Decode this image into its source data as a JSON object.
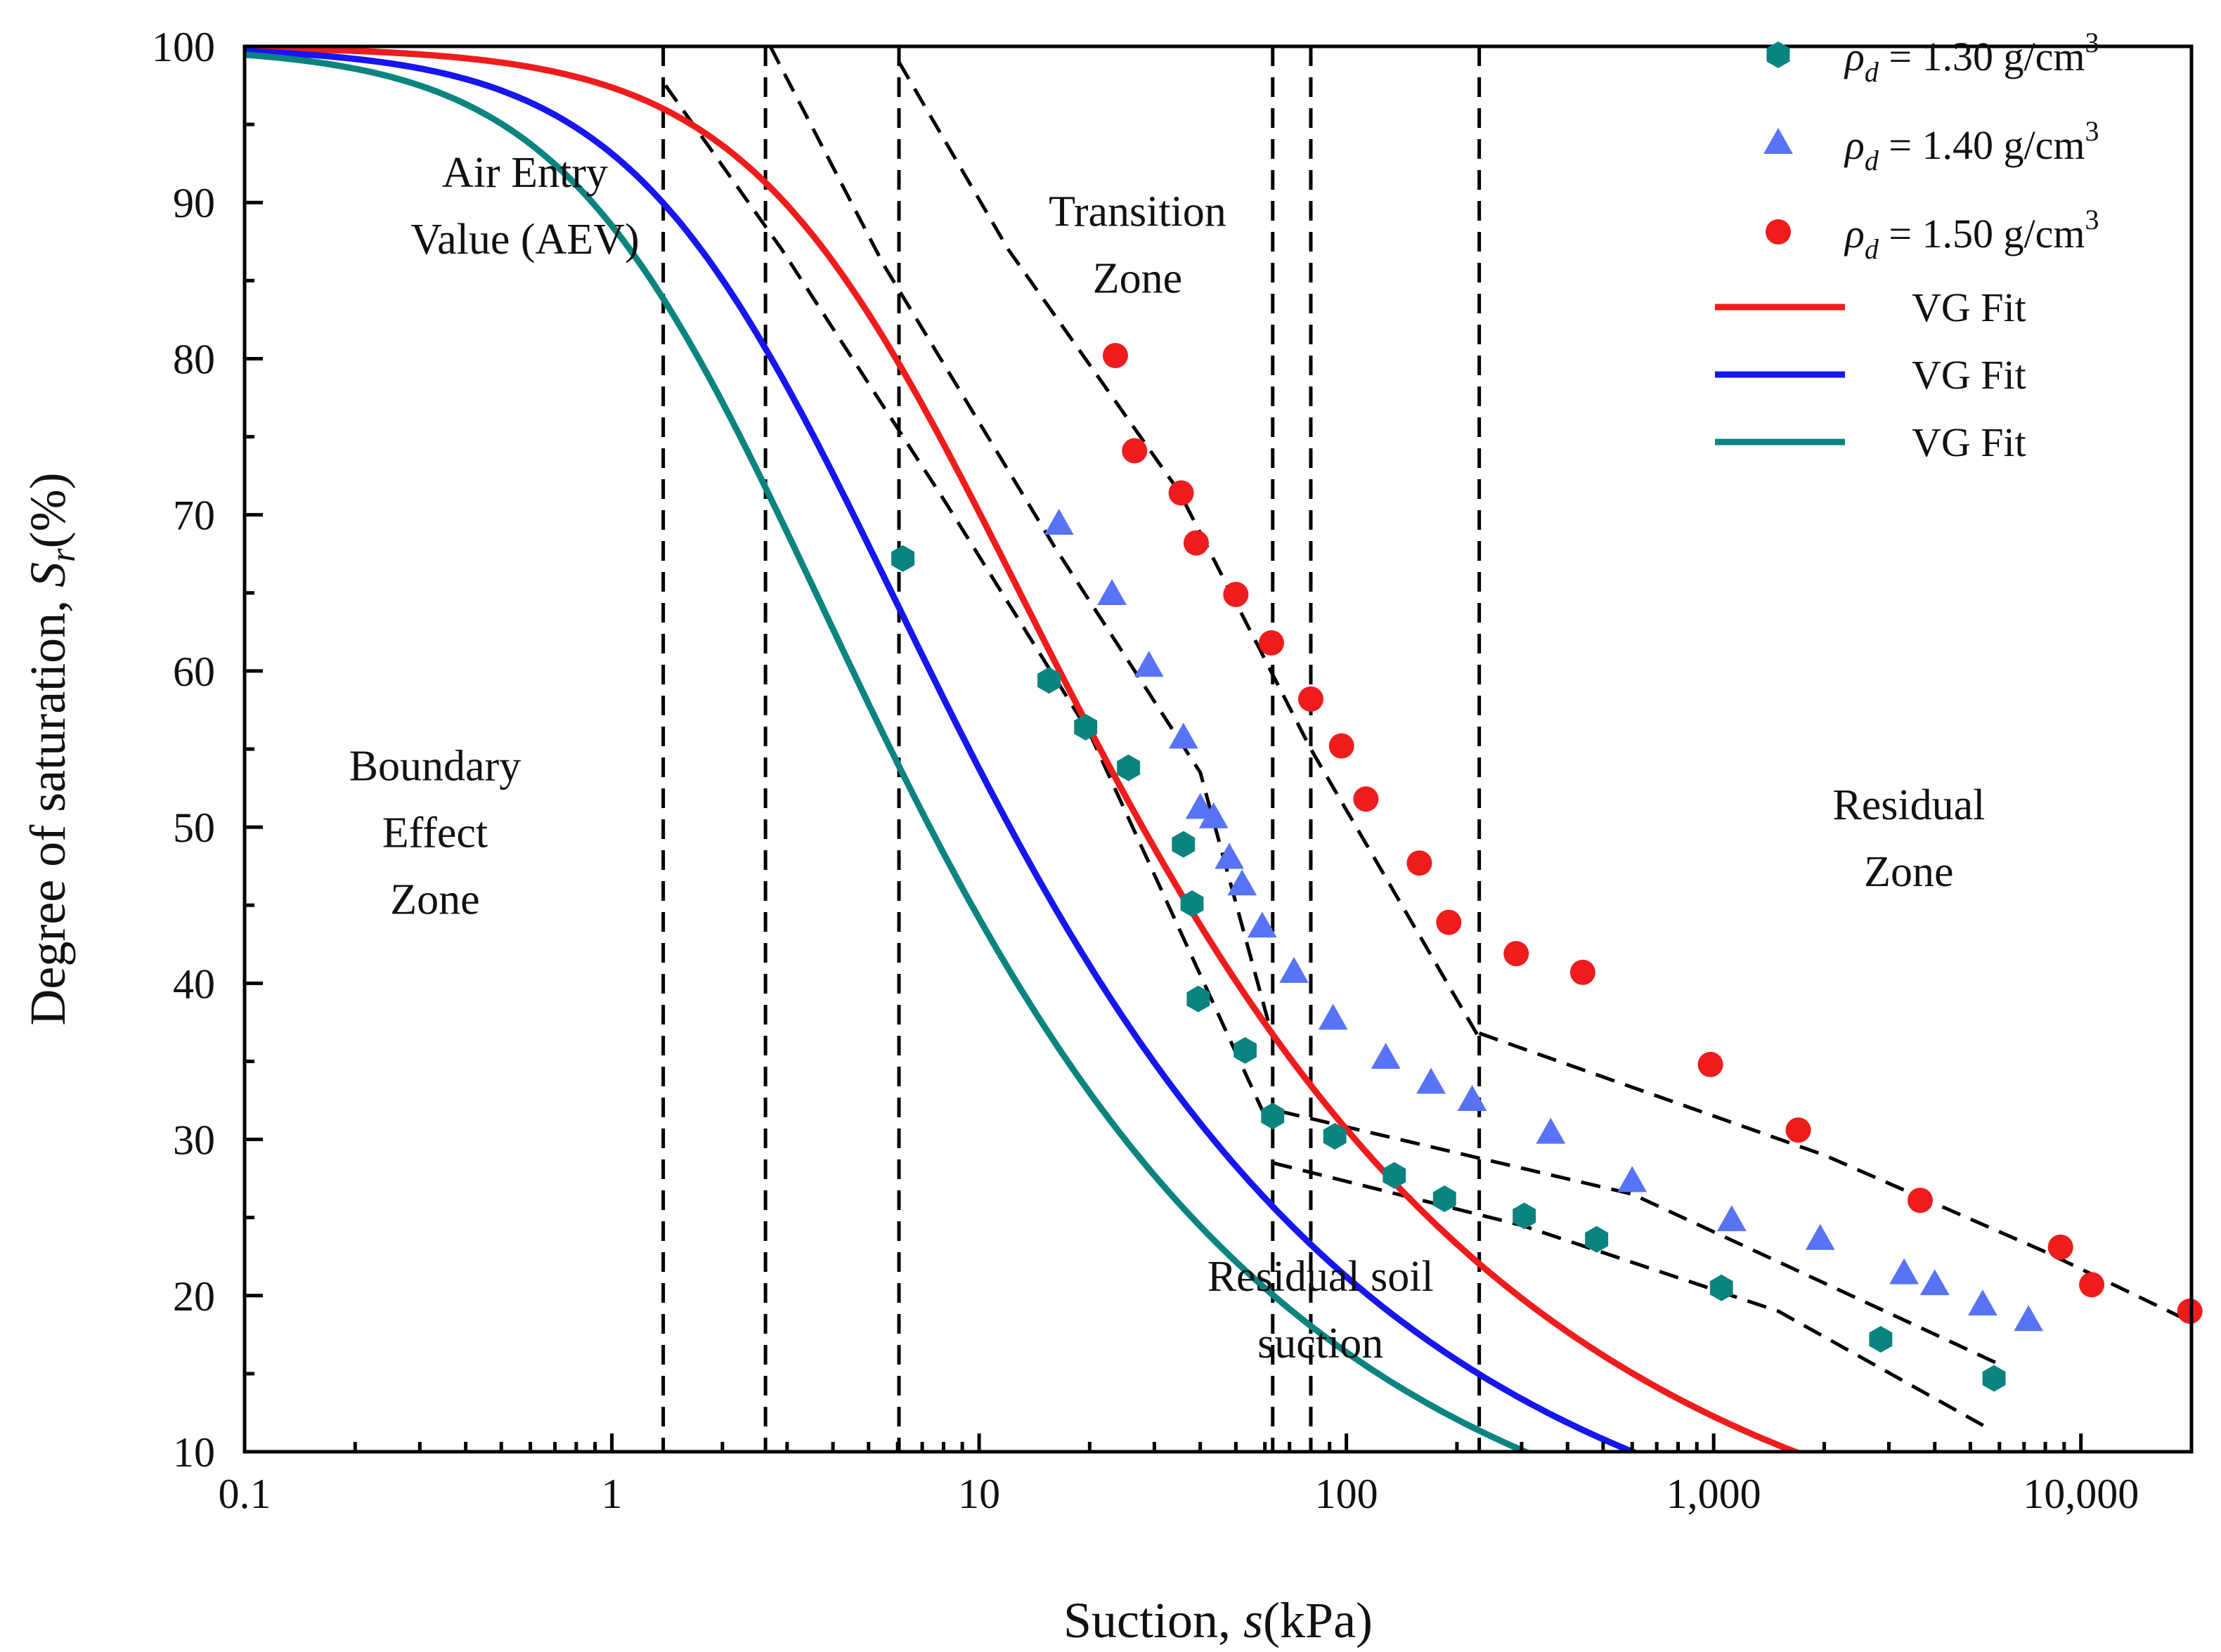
{
  "chart_data": {
    "type": "scatter",
    "title": "",
    "xlabel": {
      "prefix": "Suction, ",
      "symbol": "s",
      "suffix": "(kPa)"
    },
    "ylabel": {
      "prefix": "Degree of saturation, ",
      "symbol": "S",
      "sub": "r",
      "suffix": "(%)"
    },
    "xscale": "log",
    "xlim": [
      0.1,
      20000
    ],
    "ylim": [
      10,
      100
    ],
    "x_ticks": [
      {
        "value": 0.1,
        "label": "0.1"
      },
      {
        "value": 1,
        "label": "1"
      },
      {
        "value": 10,
        "label": "10"
      },
      {
        "value": 100,
        "label": "100"
      },
      {
        "value": 1000,
        "label": "1,000"
      },
      {
        "value": 10000,
        "label": "10,000"
      }
    ],
    "y_ticks": [
      10,
      20,
      30,
      40,
      50,
      60,
      70,
      80,
      90,
      100
    ],
    "series": [
      {
        "name": "ρd = 1.30 g/cm3",
        "legend": {
          "symbol": "ρ",
          "sub": "d",
          "text": " = 1.30 g/cm",
          "sup": "3"
        },
        "marker": "hexagon",
        "color": "#0b8480",
        "x": [
          6.2,
          15.5,
          19.5,
          25.5,
          36,
          38,
          39.5,
          53,
          63,
          93,
          135,
          185,
          305,
          480,
          1050,
          2850,
          5800
        ],
        "y": [
          67.2,
          59.4,
          56.4,
          53.8,
          48.9,
          45.1,
          39.0,
          35.7,
          31.5,
          30.2,
          27.7,
          26.2,
          25.1,
          23.6,
          20.5,
          17.2,
          14.7
        ]
      },
      {
        "name": "ρd = 1.40 g/cm3",
        "legend": {
          "symbol": "ρ",
          "sub": "d",
          "text": " = 1.40 g/cm",
          "sup": "3"
        },
        "marker": "triangle",
        "color": "#5873f5",
        "x": [
          16.5,
          23,
          29,
          36,
          40,
          43.5,
          48,
          52,
          59,
          72,
          92,
          128,
          170,
          220,
          360,
          600,
          1120,
          1950,
          3300,
          4000,
          5400,
          7200
        ],
        "y": [
          69.4,
          64.9,
          60.3,
          55.7,
          51.2,
          50.6,
          48.0,
          46.3,
          43.6,
          40.7,
          37.7,
          35.2,
          33.6,
          32.5,
          30.4,
          27.3,
          24.8,
          23.6,
          21.4,
          20.7,
          19.4,
          18.4
        ]
      },
      {
        "name": "ρd = 1.50 g/cm3",
        "legend": {
          "symbol": "ρ",
          "sub": "d",
          "text": " = 1.50 g/cm",
          "sup": "3"
        },
        "marker": "circle",
        "color": "#ee1c1c",
        "x": [
          23.5,
          26.5,
          35.5,
          39,
          50,
          62.5,
          80,
          97,
          113,
          158,
          190,
          290,
          440,
          980,
          1700,
          3650,
          8800,
          10700,
          19800
        ],
        "y": [
          80.2,
          74.1,
          71.4,
          68.2,
          64.9,
          61.8,
          58.2,
          55.2,
          51.8,
          47.7,
          43.9,
          41.9,
          40.7,
          34.8,
          30.6,
          26.1,
          23.1,
          20.7,
          19.0
        ]
      }
    ],
    "fits": [
      {
        "name": "VG Fit",
        "color": "#ee1c1c",
        "alpha": 0.19,
        "n": 1.4,
        "theta_r": 0.0,
        "x_range": [
          0.1,
          20000
        ],
        "legend_label": "VG Fit"
      },
      {
        "name": "VG Fit",
        "color": "#1616ee",
        "alpha": 0.4,
        "n": 1.42,
        "theta_r": 0.0,
        "x_range": [
          0.1,
          7000
        ],
        "legend_label": "VG Fit"
      },
      {
        "name": "VG Fit",
        "color": "#0b8480",
        "alpha": 0.61,
        "n": 1.44,
        "theta_r": 0.0,
        "x_range": [
          0.1,
          5800
        ],
        "legend_label": "VG Fit"
      }
    ],
    "guide_lines": {
      "vertical": [
        1.38,
        2.62,
        6.05,
        63,
        80,
        230
      ],
      "horizontal_100": [
        0.1,
        11
      ],
      "tangents": [
        [
          [
            1.4,
            97.5
          ],
          [
            2.9,
            87
          ],
          [
            8,
            71
          ],
          [
            20,
            56
          ],
          [
            60,
            31.5
          ]
        ],
        [
          [
            2.7,
            100
          ],
          [
            5.5,
            86
          ],
          [
            16,
            68
          ],
          [
            40,
            53.5
          ],
          [
            63,
            36.5
          ]
        ],
        [
          [
            6.05,
            99
          ],
          [
            12,
            87
          ],
          [
            35,
            71.5
          ],
          [
            80,
            55
          ],
          [
            230,
            36.5
          ]
        ],
        [
          [
            63,
            28.5
          ],
          [
            300,
            24.5
          ],
          [
            1500,
            19.0
          ],
          [
            5500,
            11.6
          ]
        ],
        [
          [
            66,
            31.8
          ],
          [
            600,
            26.5
          ],
          [
            6000,
            15.6
          ]
        ],
        [
          [
            230,
            36.8
          ],
          [
            2000,
            29.0
          ],
          [
            8000,
            22.8
          ],
          [
            20000,
            18.3
          ]
        ]
      ]
    },
    "annotations": [
      {
        "name": "air-entry-label",
        "lines": [
          "Air Entry",
          "Value (AEV)"
        ],
        "x": 0.58,
        "y": 91
      },
      {
        "name": "transition-zone-label",
        "lines": [
          "Transition",
          "Zone"
        ],
        "x": 27,
        "y": 88.5
      },
      {
        "name": "boundary-effect-label",
        "lines": [
          "Boundary",
          "Effect",
          "Zone"
        ],
        "x": 0.33,
        "y": 53
      },
      {
        "name": "residual-zone-label",
        "lines": [
          "Residual",
          "Zone"
        ],
        "x": 3400,
        "y": 50.5
      },
      {
        "name": "residual-suction-label",
        "lines": [
          "Residual soil",
          "suction"
        ],
        "x": 85,
        "y": 20.3
      }
    ],
    "legend": {
      "position": "top-right"
    }
  }
}
